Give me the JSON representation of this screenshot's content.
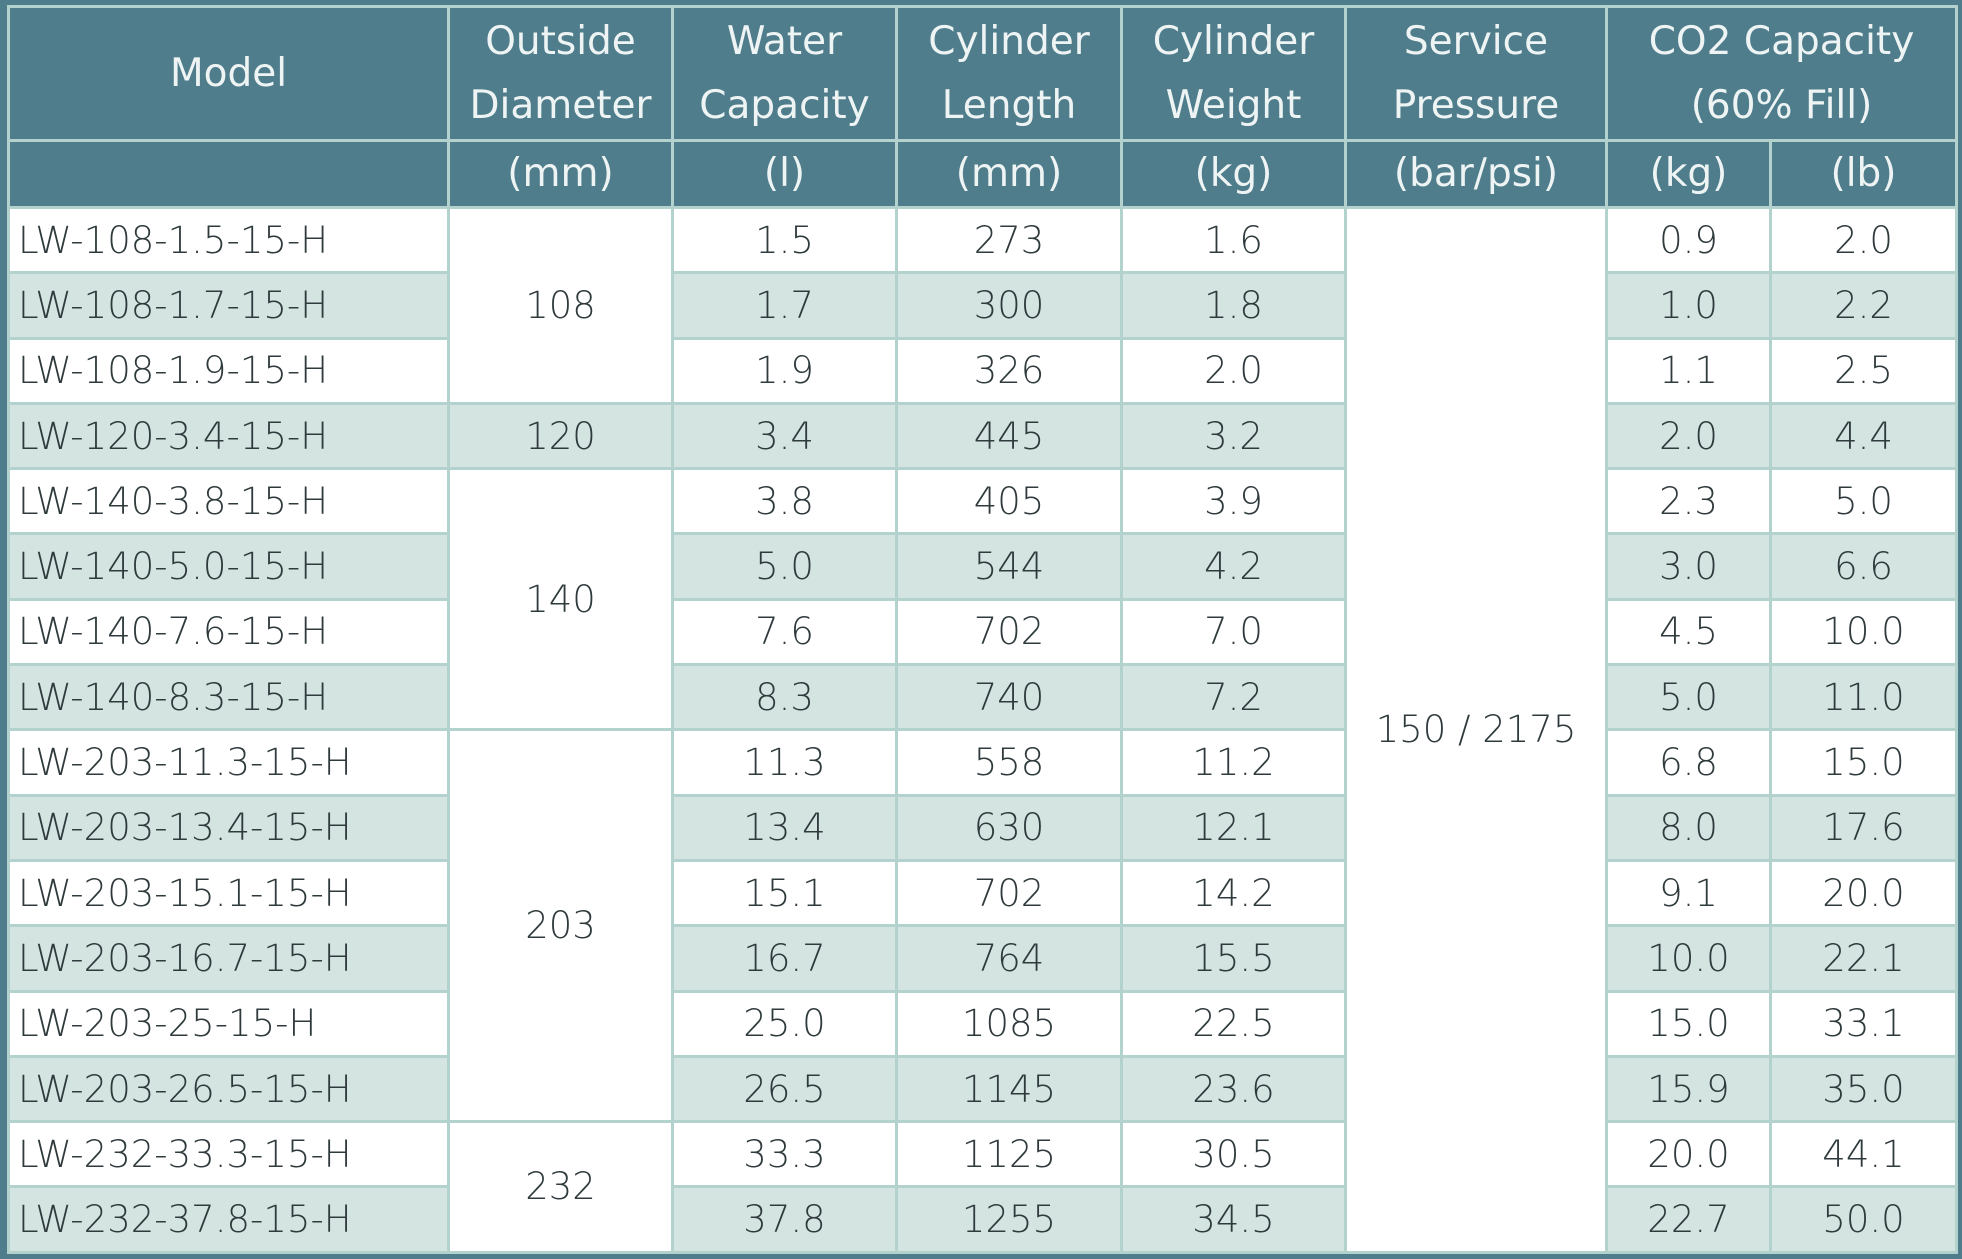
{
  "header": {
    "titles": [
      "Model",
      "Outside Diameter",
      "Water Capacity",
      "Cylinder Length",
      "Cylinder Weight",
      "Service Pressure",
      "CO2 Capacity (60% Fill)"
    ],
    "units": [
      "(mm)",
      "(l)",
      "(mm)",
      "(kg)",
      "(bar/psi)",
      "(kg)",
      "(lb)"
    ]
  },
  "table": {
    "service_pressure": "150 / 2175",
    "groups": [
      {
        "diameter": "108",
        "rows": [
          [
            "LW-108-1.5-15-H",
            "1.5",
            "273",
            "1.6",
            "0.9",
            "2.0"
          ],
          [
            "LW-108-1.7-15-H",
            "1.7",
            "300",
            "1.8",
            "1.0",
            "2.2"
          ],
          [
            "LW-108-1.9-15-H",
            "1.9",
            "326",
            "2.0",
            "1.1",
            "2.5"
          ]
        ]
      },
      {
        "diameter": "120",
        "rows": [
          [
            "LW-120-3.4-15-H",
            "3.4",
            "445",
            "3.2",
            "2.0",
            "4.4"
          ]
        ]
      },
      {
        "diameter": "140",
        "rows": [
          [
            "LW-140-3.8-15-H",
            "3.8",
            "405",
            "3.9",
            "2.3",
            "5.0"
          ],
          [
            "LW-140-5.0-15-H",
            "5.0",
            "544",
            "4.2",
            "3.0",
            "6.6"
          ],
          [
            "LW-140-7.6-15-H",
            "7.6",
            "702",
            "7.0",
            "4.5",
            "10.0"
          ],
          [
            "LW-140-8.3-15-H",
            "8.3",
            "740",
            "7.2",
            "5.0",
            "11.0"
          ]
        ]
      },
      {
        "diameter": "203",
        "rows": [
          [
            "LW-203-11.3-15-H",
            "11.3",
            "558",
            "11.2",
            "6.8",
            "15.0"
          ],
          [
            "LW-203-13.4-15-H",
            "13.4",
            "630",
            "12.1",
            "8.0",
            "17.6"
          ],
          [
            "LW-203-15.1-15-H",
            "15.1",
            "702",
            "14.2",
            "9.1",
            "20.0"
          ],
          [
            "LW-203-16.7-15-H",
            "16.7",
            "764",
            "15.5",
            "10.0",
            "22.1"
          ],
          [
            "LW-203-25-15-H",
            "25.0",
            "1085",
            "22.5",
            "15.0",
            "33.1"
          ],
          [
            "LW-203-26.5-15-H",
            "26.5",
            "1145",
            "23.6",
            "15.9",
            "35.0"
          ]
        ]
      },
      {
        "diameter": "232",
        "rows": [
          [
            "LW-232-33.3-15-H",
            "33.3",
            "1125",
            "30.5",
            "20.0",
            "44.1"
          ],
          [
            "LW-232-37.8-15-H",
            "37.8",
            "1255",
            "34.5",
            "22.7",
            "50.0"
          ]
        ]
      }
    ]
  }
}
